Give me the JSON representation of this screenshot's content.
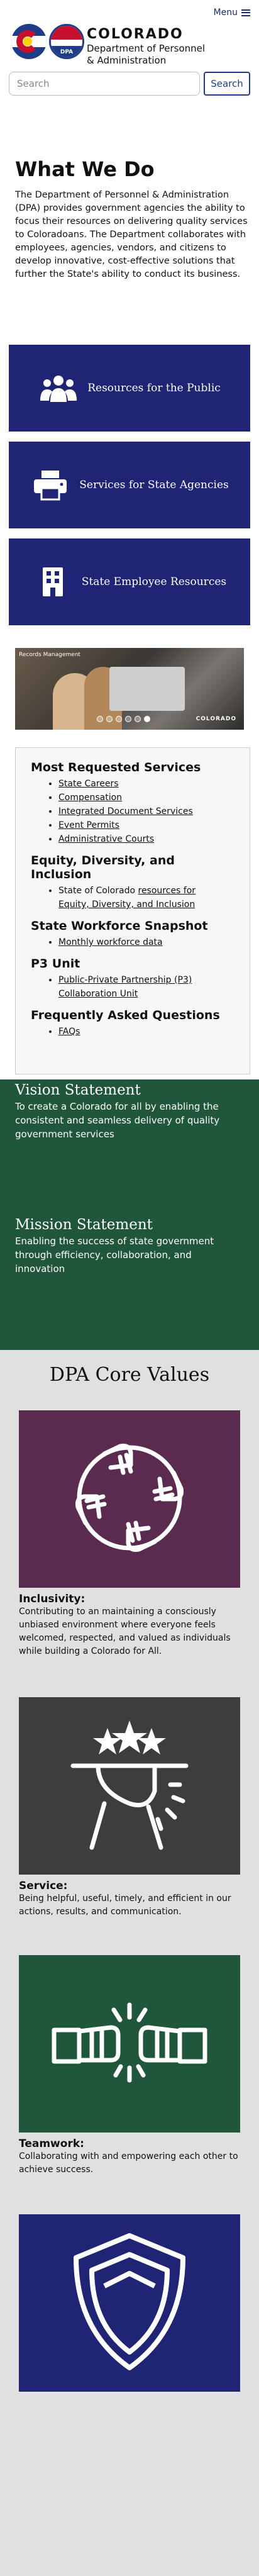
{
  "header": {
    "menu_label": "Menu",
    "brand_name": "COLORADO",
    "brand_sub_line1": "Department of Personnel",
    "brand_sub_line2": "& Administration",
    "dpa_badge": "DPA"
  },
  "search": {
    "placeholder": "Search",
    "button_label": "Search"
  },
  "intro": {
    "title": "What We Do",
    "body": "The Department of Personnel & Administration (DPA) provides government agencies the ability to focus their resources on delivering quality services to Coloradoans. The Department collaborates with employees, agencies, vendors, and citizens to develop innovative, cost-effective solutions that further the State's ability to conduct its business."
  },
  "cards": [
    {
      "label": "Resources for the Public",
      "icon": "people-icon"
    },
    {
      "label": "Services for State Agencies",
      "icon": "printer-icon"
    },
    {
      "label": "State Employee Resources",
      "icon": "building-icon"
    }
  ],
  "carousel": {
    "caption": "Records Management",
    "stamp": "COLORADO",
    "slides": 6,
    "active_index": 5
  },
  "services": {
    "most_requested": {
      "title": "Most Requested Services",
      "items": [
        "State Careers",
        "Compensation",
        "Integrated Document Services",
        "Event Permits",
        "Administrative Courts"
      ]
    },
    "edi": {
      "title": "Equity, Diversity, and Inclusion",
      "prefix": "State of Colorado ",
      "link_line1": "resources for",
      "link_line2": "Equity, Diversity, and Inclusion"
    },
    "workforce": {
      "title": "State Workforce Snapshot",
      "items": [
        "Monthly workforce data"
      ]
    },
    "p3": {
      "title": "P3 Unit",
      "link_line1": "Public-Private Partnership (P3)",
      "link_line2": "Collaboration Unit"
    },
    "faq": {
      "title": "Frequently Asked Questions",
      "items": [
        "FAQs"
      ]
    }
  },
  "statements": {
    "vision_title": "Vision Statement",
    "vision_body": "To create a Colorado for all by enabling the consistent and seamless delivery of quality government services",
    "mission_title": "Mission Statement",
    "mission_body": "Enabling the success of state government through efficiency, collaboration, and innovation"
  },
  "core_values": {
    "title": "DPA Core Values",
    "items": [
      {
        "name": "Inclusivity:",
        "desc": "Contributing to an maintaining a consciously unbiased environment where everyone feels welcomed, respected, and valued as individuals while building a Colorado for All.",
        "icon": "hands-circle-icon",
        "color": "#5a2a4f"
      },
      {
        "name": "Service:",
        "desc": "Being helpful, useful, timely, and efficient in our actions, results, and communication.",
        "icon": "serving-tray-icon",
        "color": "#3d3d3d"
      },
      {
        "name": "Teamwork:",
        "desc": "Collaborating with and empowering each other to achieve success.",
        "icon": "fist-bump-icon",
        "color": "#20573a"
      },
      {
        "name": "",
        "desc": "",
        "icon": "shield-icon",
        "color": "#1f2474"
      }
    ]
  },
  "colors": {
    "navy": "#1f2474",
    "green": "#20573a",
    "plum": "#5a2a4f",
    "charcoal": "#3d3d3d"
  }
}
